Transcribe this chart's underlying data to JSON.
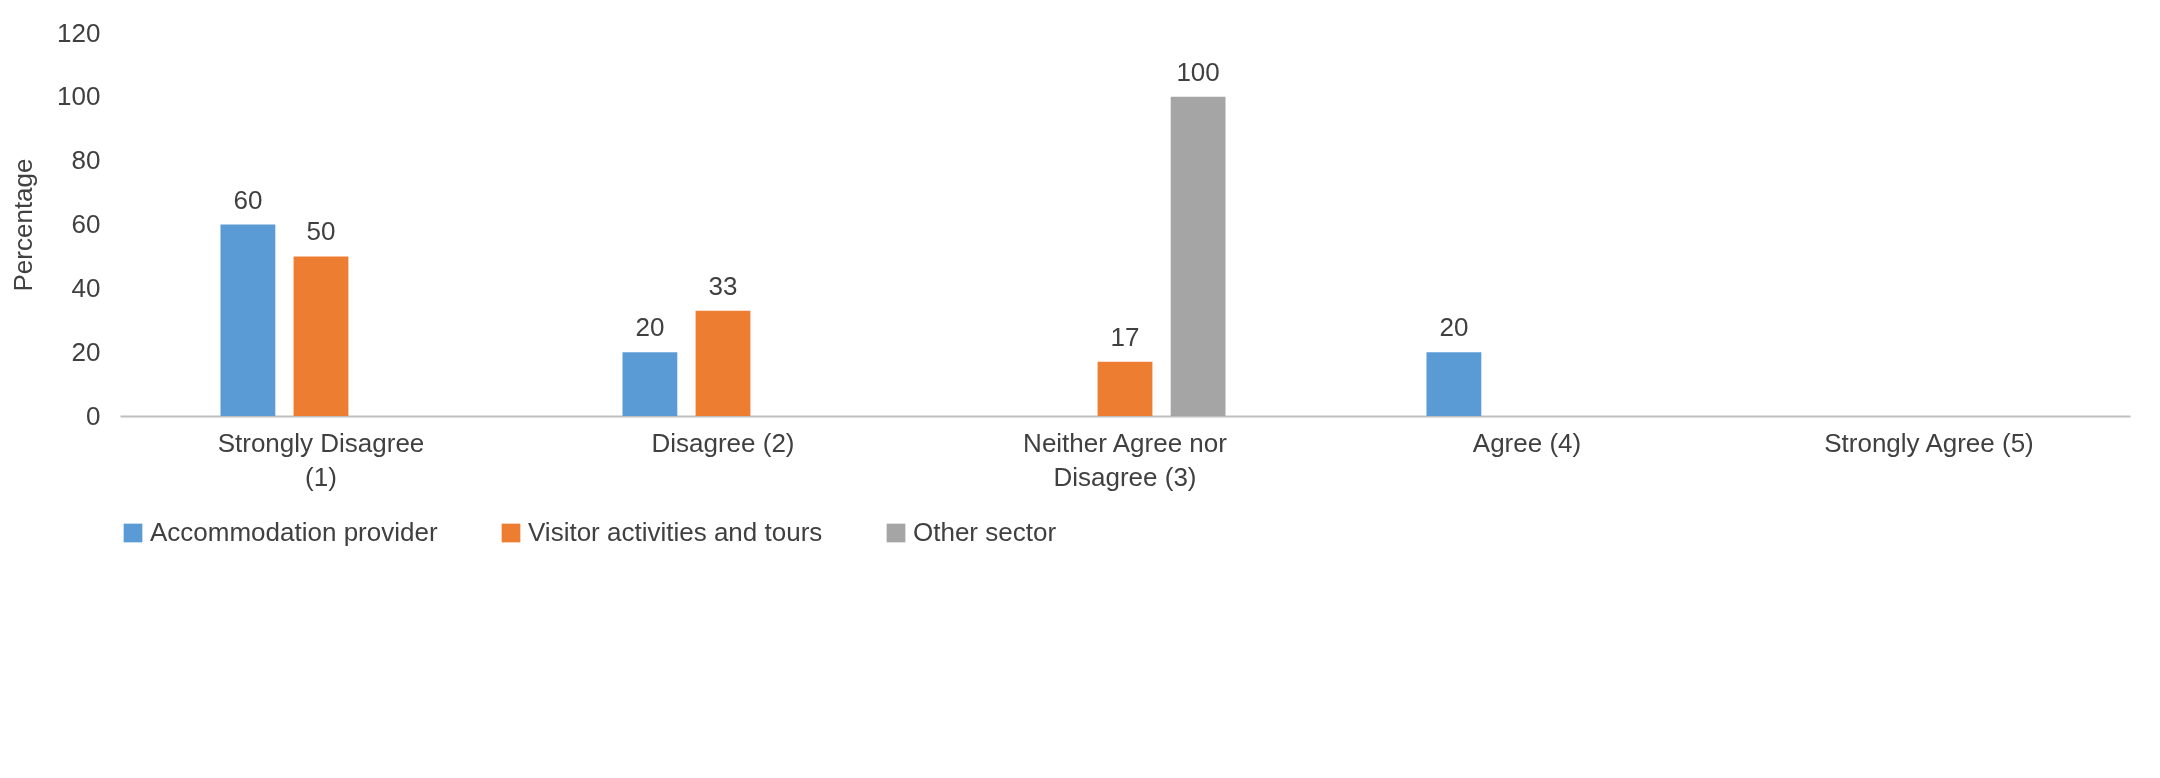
{
  "chart_data": {
    "type": "bar",
    "ylabel": "Percentage",
    "categories": [
      "Strongly Disagree (1)",
      "Disagree (2)",
      "Neither Agree nor Disagree (3)",
      "Agree (4)",
      "Strongly Agree (5)"
    ],
    "series": [
      {
        "name": "Accommodation provider",
        "color": "#5b9bd5",
        "values": [
          60,
          20,
          null,
          20,
          null
        ]
      },
      {
        "name": "Visitor activities and tours",
        "color": "#ed7d31",
        "values": [
          50,
          33,
          17,
          null,
          null
        ]
      },
      {
        "name": "Other sector",
        "color": "#a5a5a5",
        "values": [
          null,
          null,
          100,
          null,
          null
        ]
      }
    ],
    "ylim": [
      0,
      120
    ],
    "yticks": [
      0,
      20,
      40,
      60,
      80,
      100,
      120
    ],
    "grid": false,
    "legend": "bottom",
    "data_labels": true
  }
}
